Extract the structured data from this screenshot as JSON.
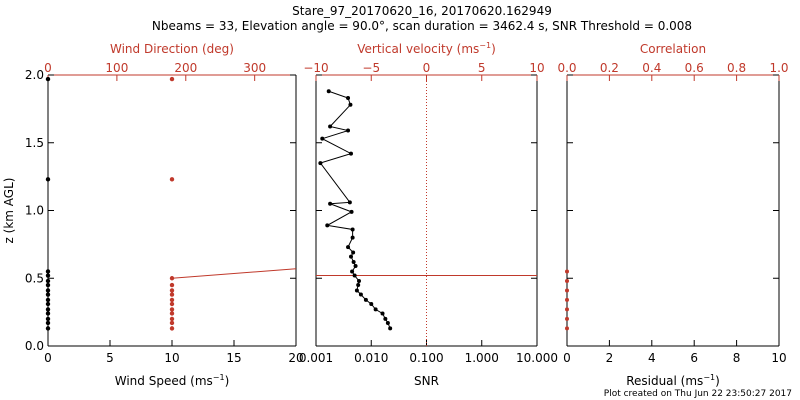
{
  "header": {
    "title": "Stare_97_20170620_16, 20170620.162949",
    "subtitle": "Nbeams = 33, Elevation angle = 90.0°, scan duration = 3462.4 s, SNR Threshold = 0.008"
  },
  "footer": {
    "created": "Plot created on Thu Jun 22 23:50:27 2017"
  },
  "colors": {
    "red": "#c0392b",
    "black": "#000000"
  },
  "chart_data": [
    {
      "type": "scatter",
      "panel": "wind",
      "ylabel": "z (km AGL)",
      "ylim": [
        0,
        2
      ],
      "y_ticks": [
        "0.0",
        "0.5",
        "1.0",
        "1.5",
        "2.0"
      ],
      "xlabel": "Wind Speed",
      "xlabel_unit": "(ms",
      "xlim": [
        0,
        20
      ],
      "x_ticks": [
        "0",
        "5",
        "10",
        "15",
        "20"
      ],
      "top_xlabel": "Wind Direction (deg)",
      "top_xlim": [
        0,
        360
      ],
      "top_x_ticks": [
        "0",
        "100",
        "200",
        "300"
      ],
      "series": [
        {
          "color": "black",
          "axis": "bottom",
          "points": [
            [
              0,
              0.13
            ],
            [
              0,
              0.17
            ],
            [
              0,
              0.2
            ],
            [
              0,
              0.24
            ],
            [
              0,
              0.27
            ],
            [
              0,
              0.31
            ],
            [
              0,
              0.34
            ],
            [
              0,
              0.38
            ],
            [
              0,
              0.41
            ],
            [
              0,
              0.45
            ],
            [
              0,
              0.48
            ],
            [
              0,
              0.52
            ],
            [
              0,
              0.55
            ],
            [
              0,
              1.23
            ],
            [
              0,
              1.97
            ]
          ]
        },
        {
          "color": "red",
          "axis": "bottom",
          "points": [
            [
              10,
              0.13
            ],
            [
              10,
              0.17
            ],
            [
              10,
              0.2
            ],
            [
              10,
              0.24
            ],
            [
              10,
              0.27
            ],
            [
              10,
              0.31
            ],
            [
              10,
              0.34
            ],
            [
              10,
              0.38
            ],
            [
              10,
              0.41
            ],
            [
              10,
              0.45
            ],
            [
              10,
              0.5
            ],
            [
              10,
              1.23
            ],
            [
              10,
              1.97
            ]
          ]
        },
        {
          "color": "red",
          "axis": "line",
          "points": [
            [
              10,
              0.5
            ],
            [
              20,
              0.57
            ]
          ]
        }
      ]
    },
    {
      "type": "line",
      "panel": "velocity",
      "xlabel": "SNR",
      "xscale": "log",
      "xlim": [
        0.001,
        10
      ],
      "x_ticks": [
        "0.001",
        "0.010",
        "0.100",
        "1.000",
        "10.000"
      ],
      "top_xlabel": "Vertical velocity",
      "top_xlabel_unit": "(ms",
      "top_xlim": [
        -10,
        10
      ],
      "top_x_ticks": [
        "−10",
        "−5",
        "0",
        "5",
        "10"
      ],
      "reference_velocity": 0,
      "hline_z": 0.52,
      "series": [
        {
          "color": "black",
          "snr": [
            0.022,
            0.02,
            0.018,
            0.016,
            0.012,
            0.01,
            0.008,
            0.0065,
            0.0055,
            0.0058,
            0.006,
            0.005,
            0.0045,
            0.0052,
            0.0048,
            0.0043,
            0.0047,
            0.0038,
            0.0046,
            0.0046,
            0.0016,
            0.0044,
            0.0018,
            0.0041,
            0.0012,
            0.0043,
            0.0013,
            0.0038,
            0.0018,
            0.0042,
            0.0038,
            0.0017
          ],
          "z": [
            0.13,
            0.17,
            0.2,
            0.24,
            0.27,
            0.31,
            0.34,
            0.38,
            0.41,
            0.45,
            0.48,
            0.52,
            0.55,
            0.59,
            0.62,
            0.66,
            0.69,
            0.73,
            0.8,
            0.86,
            0.89,
            0.99,
            1.05,
            1.06,
            1.35,
            1.42,
            1.53,
            1.59,
            1.62,
            1.78,
            1.83,
            1.88
          ]
        }
      ]
    },
    {
      "type": "scatter",
      "panel": "correlation",
      "xlabel": "Residual",
      "xlabel_unit": "(ms",
      "xlim": [
        0,
        10
      ],
      "x_ticks": [
        "0",
        "2",
        "4",
        "6",
        "8",
        "10"
      ],
      "top_xlabel": "Correlation",
      "top_xlim": [
        0,
        1
      ],
      "top_x_ticks": [
        "0.0",
        "0.2",
        "0.4",
        "0.6",
        "0.8",
        "1.0"
      ],
      "series": [
        {
          "color": "red",
          "points": [
            [
              0,
              0.13
            ],
            [
              0,
              0.2
            ],
            [
              0,
              0.27
            ],
            [
              0,
              0.34
            ],
            [
              0,
              0.41
            ],
            [
              0,
              0.48
            ],
            [
              0,
              0.55
            ]
          ]
        }
      ]
    }
  ]
}
